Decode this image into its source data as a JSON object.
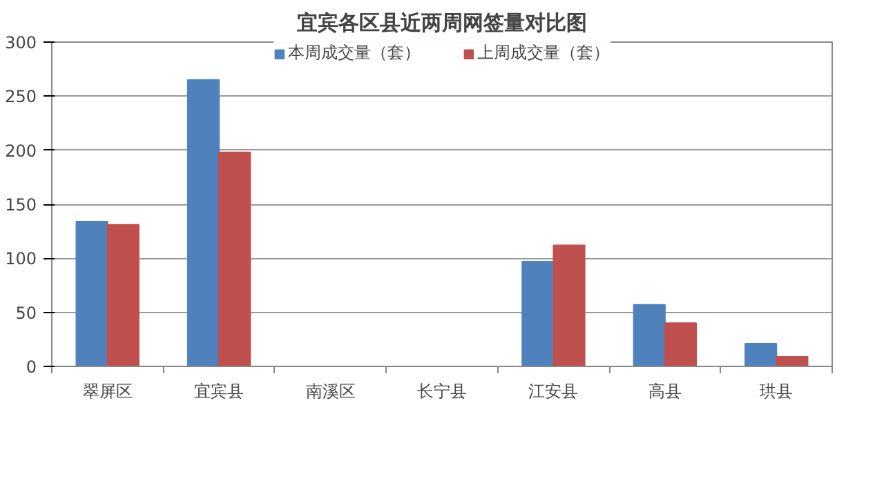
{
  "chart_data": {
    "type": "bar",
    "title": "宜宾各区县近两周网签量对比图",
    "categories": [
      "翠屏区",
      "宜宾县",
      "南溪区",
      "长宁县",
      "江安县",
      "高县",
      "珙县"
    ],
    "series": [
      {
        "name": "本周成交量（套）",
        "color": "#4f81bd",
        "values": [
          134,
          265,
          0,
          0,
          97,
          57,
          21
        ]
      },
      {
        "name": "上周成交量（套）",
        "color": "#c0504d",
        "values": [
          131,
          198,
          0,
          0,
          112,
          40,
          9
        ]
      }
    ],
    "ylim": [
      0,
      300
    ],
    "yticks": [
      0,
      50,
      100,
      150,
      200,
      250,
      300
    ],
    "grid": "y",
    "legend": "top"
  }
}
